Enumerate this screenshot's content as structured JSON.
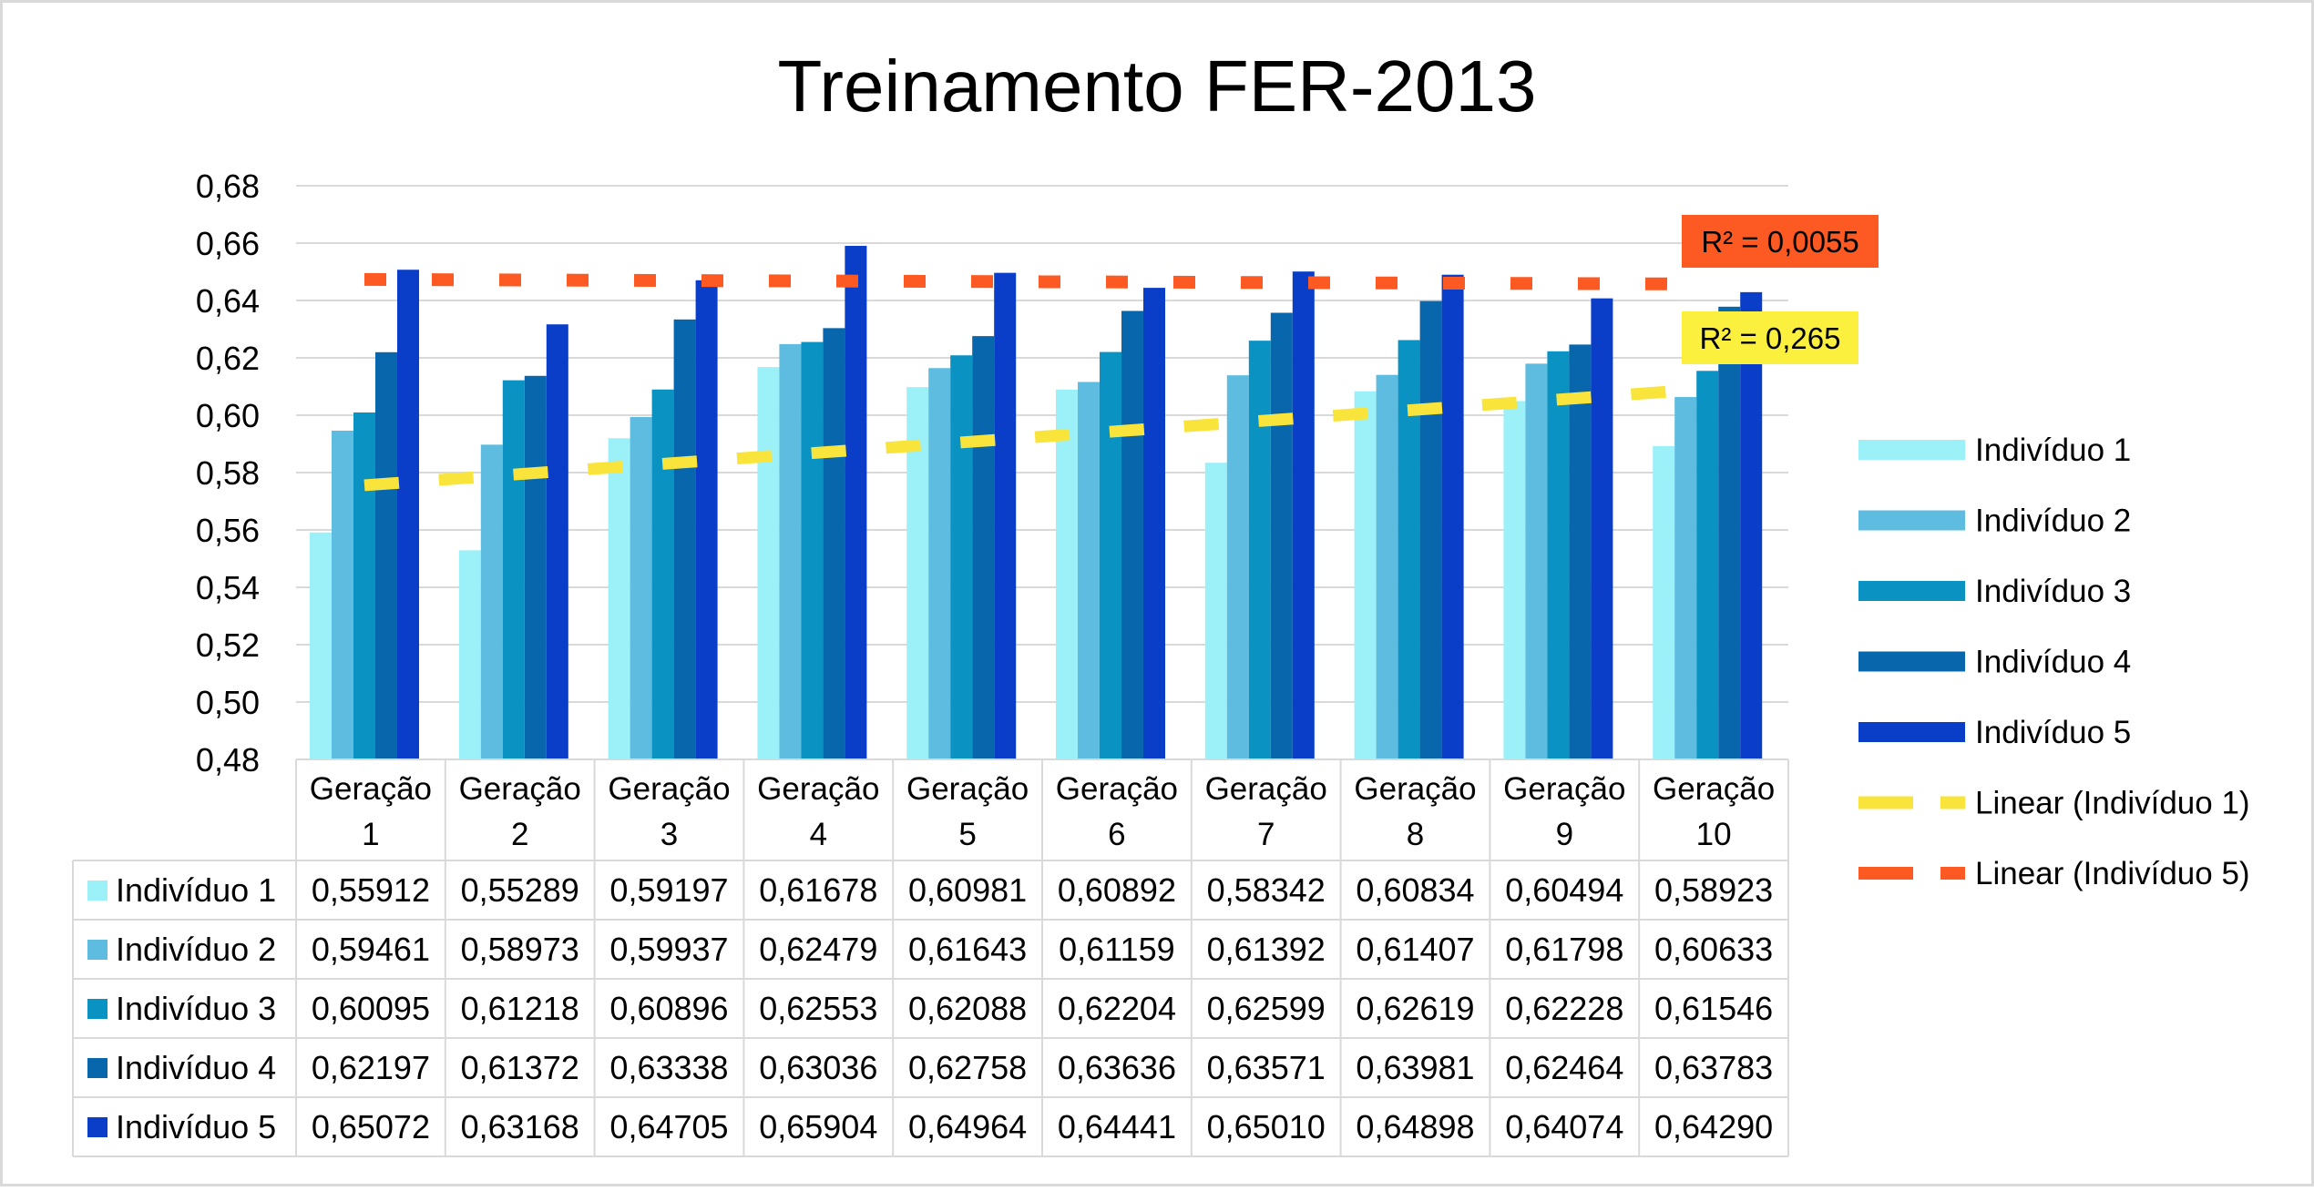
{
  "chart_data": {
    "type": "bar",
    "title": "Treinamento FER-2013",
    "xlabel": "",
    "ylabel": "",
    "ylim": [
      0.48,
      0.68
    ],
    "yticks": [
      "0,48",
      "0,50",
      "0,52",
      "0,54",
      "0,56",
      "0,58",
      "0,60",
      "0,62",
      "0,64",
      "0,66",
      "0,68"
    ],
    "grid": true,
    "legend_position": "right",
    "categories": [
      [
        "Geração",
        "1"
      ],
      [
        "Geração",
        "2"
      ],
      [
        "Geração",
        "3"
      ],
      [
        "Geração",
        "4"
      ],
      [
        "Geração",
        "5"
      ],
      [
        "Geração",
        "6"
      ],
      [
        "Geração",
        "7"
      ],
      [
        "Geração",
        "8"
      ],
      [
        "Geração",
        "9"
      ],
      [
        "Geração",
        "10"
      ]
    ],
    "series": [
      {
        "name": "Indivíduo 1",
        "color": "#9CF0F8",
        "values": [
          0.55912,
          0.55289,
          0.59197,
          0.61678,
          0.60981,
          0.60892,
          0.58342,
          0.60834,
          0.60494,
          0.58923
        ],
        "labels": [
          "0,55912",
          "0,55289",
          "0,59197",
          "0,61678",
          "0,60981",
          "0,60892",
          "0,58342",
          "0,60834",
          "0,60494",
          "0,58923"
        ]
      },
      {
        "name": "Indivíduo 2",
        "color": "#5DBCDF",
        "values": [
          0.59461,
          0.58973,
          0.59937,
          0.62479,
          0.61643,
          0.61159,
          0.61392,
          0.61407,
          0.61798,
          0.60633
        ],
        "labels": [
          "0,59461",
          "0,58973",
          "0,59937",
          "0,62479",
          "0,61643",
          "0,61159",
          "0,61392",
          "0,61407",
          "0,61798",
          "0,60633"
        ]
      },
      {
        "name": "Indivíduo 3",
        "color": "#0A92C2",
        "values": [
          0.60095,
          0.61218,
          0.60896,
          0.62553,
          0.62088,
          0.62204,
          0.62599,
          0.62619,
          0.62228,
          0.61546
        ],
        "labels": [
          "0,60095",
          "0,61218",
          "0,60896",
          "0,62553",
          "0,62088",
          "0,62204",
          "0,62599",
          "0,62619",
          "0,62228",
          "0,61546"
        ]
      },
      {
        "name": "Indivíduo 4",
        "color": "#0867AC",
        "values": [
          0.62197,
          0.61372,
          0.63338,
          0.63036,
          0.62758,
          0.63636,
          0.63571,
          0.63981,
          0.62464,
          0.63783
        ],
        "labels": [
          "0,62197",
          "0,61372",
          "0,63338",
          "0,63036",
          "0,62758",
          "0,63636",
          "0,63571",
          "0,63981",
          "0,62464",
          "0,63783"
        ]
      },
      {
        "name": "Indivíduo 5",
        "color": "#0A3EC9",
        "values": [
          0.65072,
          0.63168,
          0.64705,
          0.65904,
          0.64964,
          0.64441,
          0.6501,
          0.64898,
          0.64074,
          0.6429
        ],
        "labels": [
          "0,65072",
          "0,63168",
          "0,64705",
          "0,65904",
          "0,64964",
          "0,64441",
          "0,65010",
          "0,64898",
          "0,64074",
          "0,64290"
        ]
      }
    ],
    "trendlines": [
      {
        "name": "Linear (Indivíduo 1)",
        "series_index": 0,
        "color": "#F9E43C",
        "r2_label": "R² = 0,265",
        "label_bg": "#FCF03E"
      },
      {
        "name": "Linear (Indivíduo 5)",
        "series_index": 4,
        "color": "#FC5A22",
        "r2_label": "R² = 0,0055",
        "label_bg": "#FC5A22"
      }
    ]
  }
}
